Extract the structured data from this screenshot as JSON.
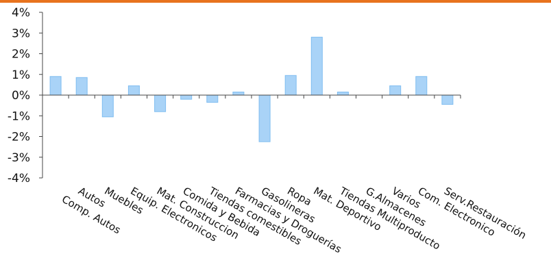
{
  "colors": {
    "accent_line": "#e8731e",
    "bar_fill": "#a9d3f7",
    "bar_stroke": "#7fbdf0",
    "axis": "#444444"
  },
  "chart_data": {
    "type": "bar",
    "categories": [
      "Comp. Autos",
      "Autos",
      "Muebles",
      "Equip. Electronicos",
      "Mat. Construccion",
      "Comida y Bebida",
      "Tiendas comestibles",
      "Farmacias y Droguerías",
      "Gasolineras",
      "Ropa",
      "Mat. Deportivo",
      "Tiendas Multiproducto",
      "G.Almacenes",
      "Varios",
      "Com. Electronico",
      "Serv.Restauración"
    ],
    "values": [
      0.9,
      0.85,
      -1.05,
      0.45,
      -0.8,
      -0.2,
      -0.35,
      0.15,
      -2.25,
      0.95,
      2.8,
      0.15,
      0.0,
      0.45,
      0.9,
      -0.45
    ],
    "yticks": [
      "4%",
      "3%",
      "2%",
      "1%",
      "0%",
      "-1%",
      "-2%",
      "-3%",
      "-4%"
    ],
    "ylim": [
      -4,
      4
    ],
    "grid": false,
    "legend": "none"
  }
}
